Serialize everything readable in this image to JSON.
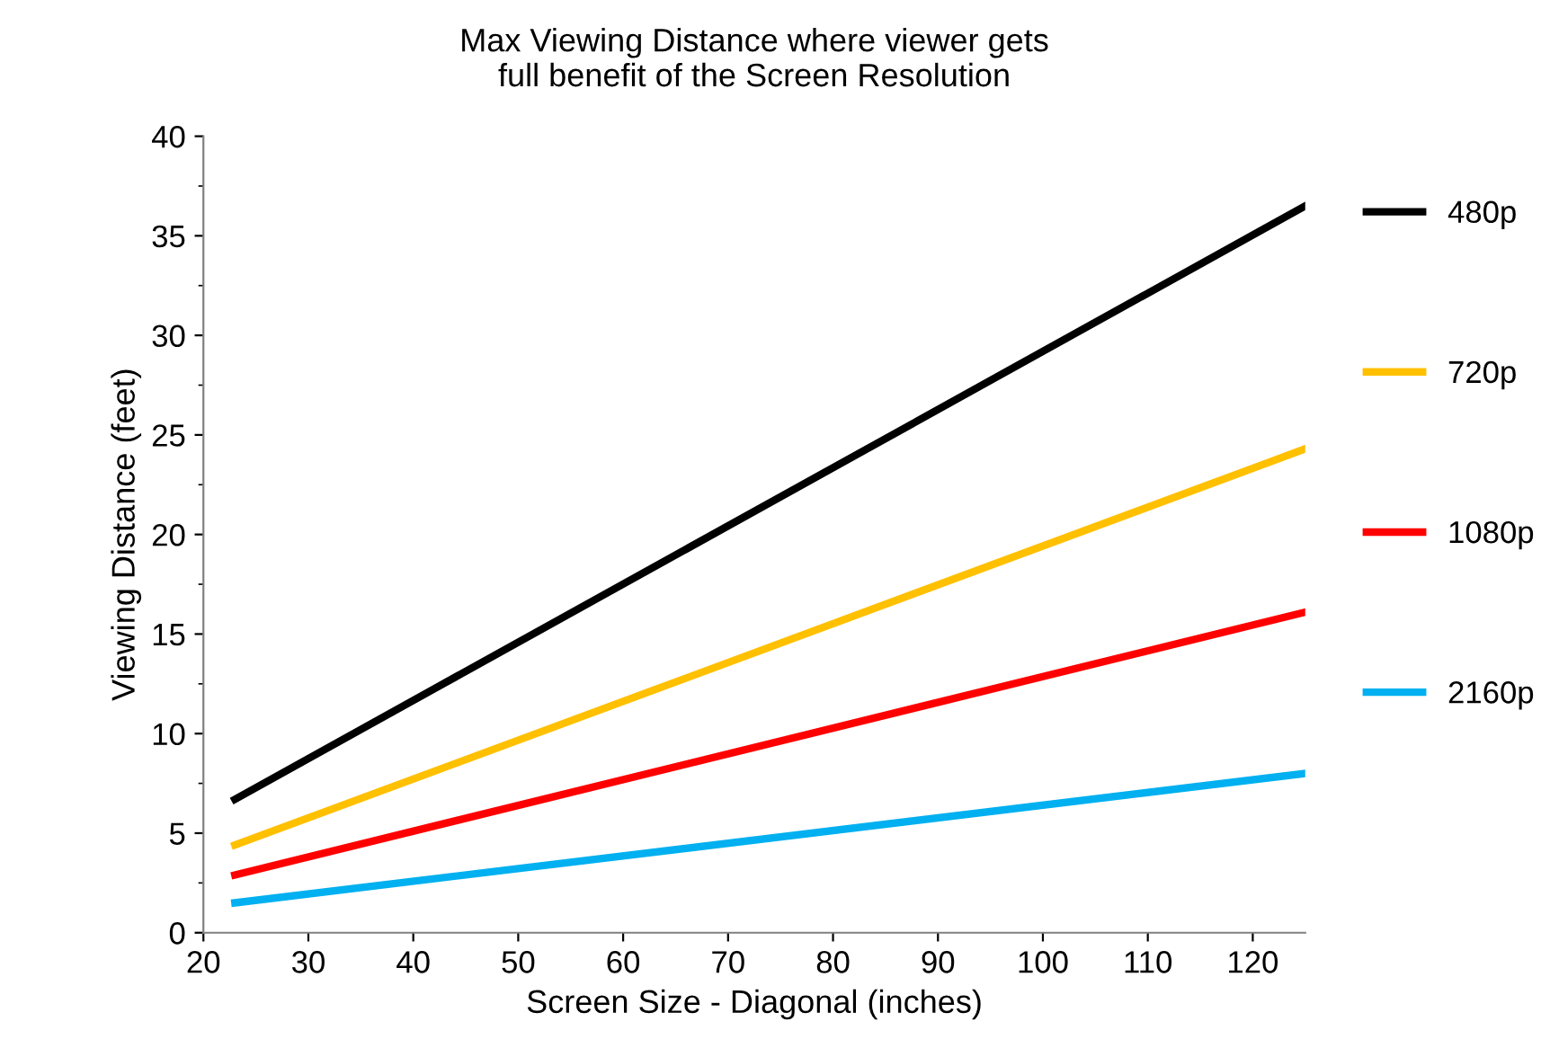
{
  "chart_data": {
    "type": "line",
    "title": "Max Viewing Distance where viewer gets\nfull benefit of the Screen Resolution",
    "xlabel": "Screen Size - Diagonal (inches)",
    "ylabel": "Viewing Distance (feet)",
    "x": [
      23,
      125
    ],
    "series": [
      {
        "name": "480p",
        "color": "#000000",
        "values": [
          6.7,
          36.5
        ]
      },
      {
        "name": "720p",
        "color": "#ffc000",
        "values": [
          4.4,
          24.3
        ]
      },
      {
        "name": "1080p",
        "color": "#ff0000",
        "values": [
          2.9,
          16.1
        ]
      },
      {
        "name": "2160p",
        "color": "#00b0f0",
        "values": [
          1.5,
          8.0
        ]
      }
    ],
    "xlim": [
      20,
      125
    ],
    "xticks": [
      20,
      30,
      40,
      50,
      60,
      70,
      80,
      90,
      100,
      110,
      120
    ],
    "ylim": [
      0,
      40
    ],
    "yticks": [
      0,
      5,
      10,
      15,
      20,
      25,
      30,
      35,
      40
    ],
    "grid": false,
    "legend": "right",
    "marker": "none",
    "line_style": "solid"
  }
}
